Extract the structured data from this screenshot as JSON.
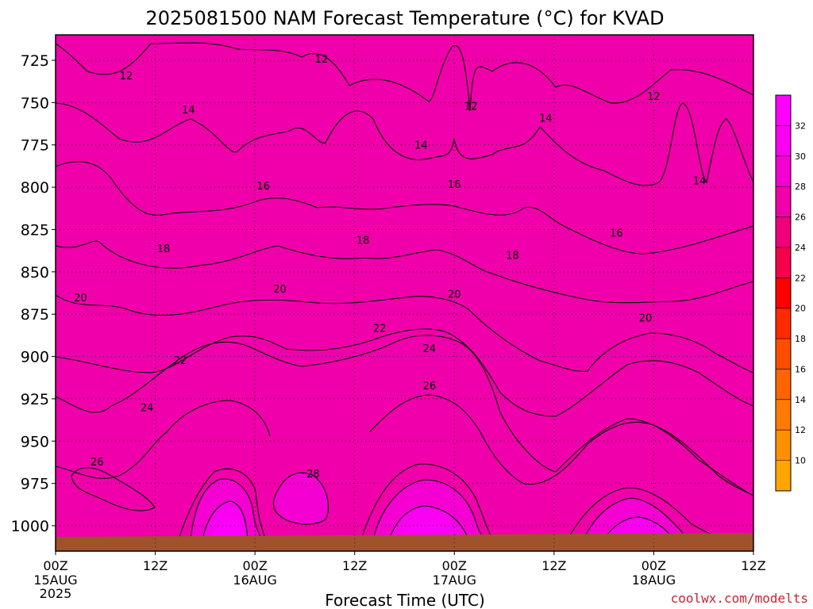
{
  "chart_data": {
    "type": "heatmap",
    "title": "2025081500 NAM Forecast Temperature (°C) for KVAD",
    "xlabel": "Forecast Time (UTC)",
    "ylabel": "",
    "credit": "coolwx.com/modelts",
    "x_ticks": [
      {
        "label": "00Z",
        "sub": "15AUG",
        "year": "2025",
        "hour": 0
      },
      {
        "label": "12Z",
        "sub": "",
        "year": "",
        "hour": 12
      },
      {
        "label": "00Z",
        "sub": "16AUG",
        "year": "",
        "hour": 24
      },
      {
        "label": "12Z",
        "sub": "",
        "year": "",
        "hour": 36
      },
      {
        "label": "00Z",
        "sub": "17AUG",
        "year": "",
        "hour": 48
      },
      {
        "label": "12Z",
        "sub": "",
        "year": "",
        "hour": 60
      },
      {
        "label": "00Z",
        "sub": "18AUG",
        "year": "",
        "hour": 72
      },
      {
        "label": "12Z",
        "sub": "",
        "year": "",
        "hour": 84
      }
    ],
    "y_ticks": [
      725,
      750,
      775,
      800,
      825,
      850,
      875,
      900,
      925,
      950,
      975,
      1000
    ],
    "xlim": [
      0,
      84
    ],
    "ylim_hpa": [
      1015,
      710
    ],
    "grid": true,
    "legend_position": "right",
    "colorbar": {
      "labels": [
        "10",
        "12",
        "14",
        "16",
        "18",
        "20",
        "22",
        "24",
        "26",
        "28",
        "30",
        "32"
      ],
      "colors": [
        "#ffa500",
        "#ff9000",
        "#ff7a00",
        "#ff6400",
        "#ff4d00",
        "#ff2a00",
        "#ff0000",
        "#f5004a",
        "#f0007a",
        "#f000aa",
        "#f500d2",
        "#fa00f0",
        "#ff00ff"
      ]
    },
    "contour_labels": [
      {
        "text": "12",
        "hour": 8.5,
        "hpa": 734
      },
      {
        "text": "12",
        "hour": 32,
        "hpa": 724
      },
      {
        "text": "12",
        "hour": 50,
        "hpa": 752
      },
      {
        "text": "12",
        "hour": 72,
        "hpa": 746
      },
      {
        "text": "14",
        "hour": 16,
        "hpa": 754
      },
      {
        "text": "14",
        "hour": 44,
        "hpa": 775
      },
      {
        "text": "14",
        "hour": 59,
        "hpa": 759
      },
      {
        "text": "14",
        "hour": 77.5,
        "hpa": 796
      },
      {
        "text": "16",
        "hour": 25,
        "hpa": 799
      },
      {
        "text": "16",
        "hour": 48,
        "hpa": 798
      },
      {
        "text": "16",
        "hour": 67.5,
        "hpa": 827
      },
      {
        "text": "18",
        "hour": 13,
        "hpa": 836
      },
      {
        "text": "18",
        "hour": 37,
        "hpa": 831
      },
      {
        "text": "18",
        "hour": 55,
        "hpa": 840
      },
      {
        "text": "20",
        "hour": 3,
        "hpa": 865
      },
      {
        "text": "20",
        "hour": 27,
        "hpa": 860
      },
      {
        "text": "20",
        "hour": 48,
        "hpa": 863
      },
      {
        "text": "20",
        "hour": 71,
        "hpa": 877
      },
      {
        "text": "22",
        "hour": 15,
        "hpa": 902
      },
      {
        "text": "22",
        "hour": 39,
        "hpa": 883
      },
      {
        "text": "24",
        "hour": 11,
        "hpa": 930
      },
      {
        "text": "24",
        "hour": 45,
        "hpa": 895
      },
      {
        "text": "26",
        "hour": 5,
        "hpa": 962
      },
      {
        "text": "26",
        "hour": 45,
        "hpa": 917
      },
      {
        "text": "28",
        "hour": 31,
        "hpa": 969
      }
    ]
  }
}
